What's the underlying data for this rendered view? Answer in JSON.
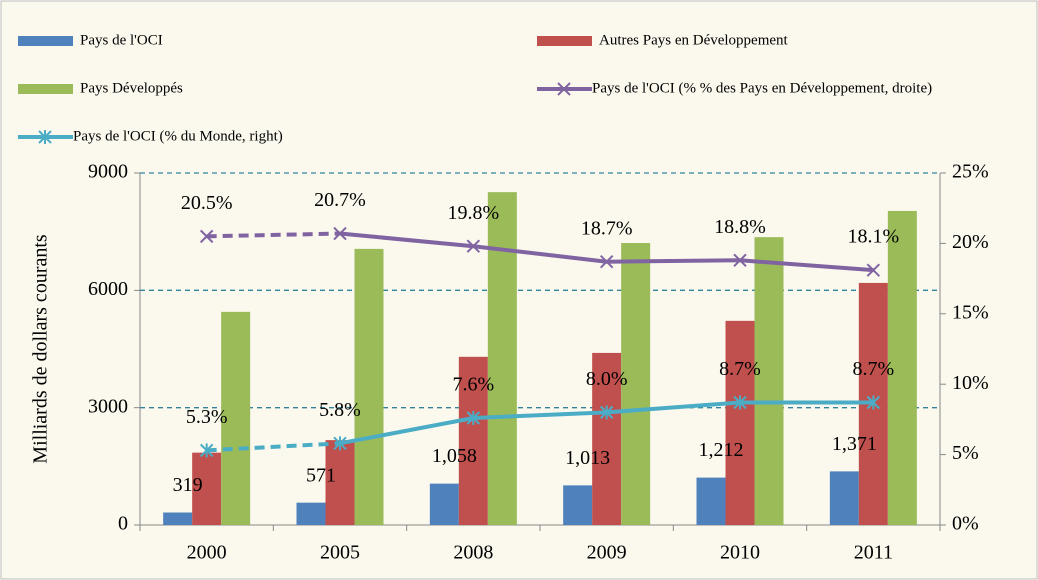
{
  "chart_data": {
    "type": "bar_line",
    "y_label": "Milliards de dollars courants",
    "categories": [
      "2000",
      "2005",
      "2008",
      "2009",
      "2010",
      "2011"
    ],
    "series": [
      {
        "name": "Pays de l'OCI",
        "color": "#4f81bd",
        "values": [
          319,
          571,
          1058,
          1013,
          1212,
          1371
        ],
        "value_labels": [
          "319",
          "571",
          "1,058",
          "1,013",
          "1,212",
          "1,371"
        ]
      },
      {
        "name": "Autres Pays en Développement",
        "color": "#c0504d",
        "values": [
          1850,
          2170,
          4300,
          4400,
          5220,
          6190
        ]
      },
      {
        "name": "Pays Développés",
        "color": "#9bbb59",
        "values": [
          5450,
          7060,
          8510,
          7210,
          7360,
          8030
        ]
      },
      {
        "name": "Pays de l'OCI (% % des Pays en Développement, droite)",
        "color": "#8064a2",
        "axis": "y2",
        "marker": "x",
        "dash_first_segment": true,
        "values": [
          20.5,
          20.7,
          19.8,
          18.7,
          18.8,
          18.1
        ],
        "value_labels": [
          "20.5%",
          "20.7%",
          "19.8%",
          "18.7%",
          "18.8%",
          "18.1%"
        ]
      },
      {
        "name": "Pays de l'OCI (% du Monde, right)",
        "color": "#4bacc6",
        "axis": "y2",
        "marker": "asterisk",
        "dash_first_segment": true,
        "values": [
          5.3,
          5.8,
          7.6,
          8.0,
          8.7,
          8.7
        ],
        "value_labels": [
          "5.3%",
          "5.8%",
          "7.6%",
          "8.0%",
          "8.7%",
          "8.7%"
        ]
      }
    ],
    "ylim": [
      0,
      9000
    ],
    "yticks": [
      0,
      3000,
      6000,
      9000
    ],
    "y2lim": [
      0,
      25
    ],
    "y2ticks": [
      {
        "value": 0,
        "label": "0%"
      },
      {
        "value": 5,
        "label": "5%"
      },
      {
        "value": 10,
        "label": "10%"
      },
      {
        "value": 15,
        "label": "15%"
      },
      {
        "value": 20,
        "label": "20%"
      },
      {
        "value": 25,
        "label": "25%"
      }
    ],
    "grid": true
  }
}
